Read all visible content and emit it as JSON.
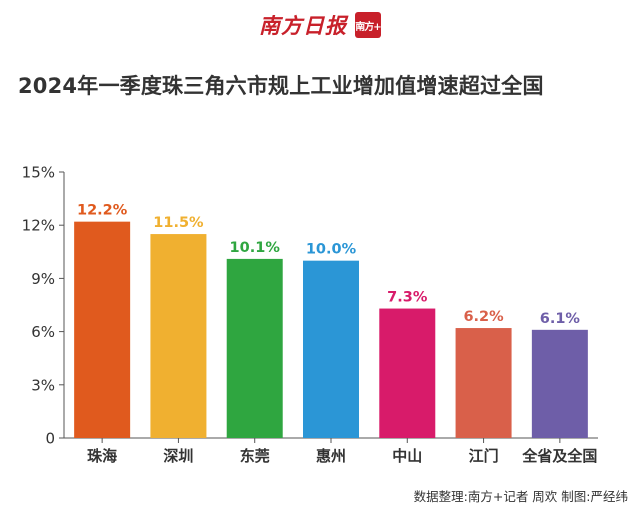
{
  "masthead": {
    "name": "南方日报",
    "logo_text": "南方+"
  },
  "title": "2024年一季度珠三角六市规上工业增加值增速超过全国",
  "source": "数据整理:南方+记者 周欢  制图:严经纬",
  "chart_data": {
    "type": "bar",
    "title": "2024年一季度珠三角六市规上工业增加值增速超过全国",
    "xlabel": "",
    "ylabel": "",
    "categories": [
      "珠海",
      "深圳",
      "东莞",
      "惠州",
      "中山",
      "江门",
      "全省及全国"
    ],
    "values": [
      12.2,
      11.5,
      10.1,
      10.0,
      7.3,
      6.2,
      6.1
    ],
    "value_labels": [
      "12.2%",
      "11.5%",
      "10.1%",
      "10.0%",
      "7.3%",
      "6.2%",
      "6.1%"
    ],
    "colors": [
      "#e05a1e",
      "#f0b030",
      "#2fa640",
      "#2b96d6",
      "#d81b6a",
      "#d9604a",
      "#6e5ea8"
    ],
    "ylim": [
      0,
      15
    ],
    "yticks": [
      0,
      3,
      6,
      9,
      12,
      15
    ],
    "ytick_labels": [
      "0",
      "3%",
      "6%",
      "9%",
      "12%",
      "15%"
    ],
    "grid": false,
    "legend": "none"
  }
}
